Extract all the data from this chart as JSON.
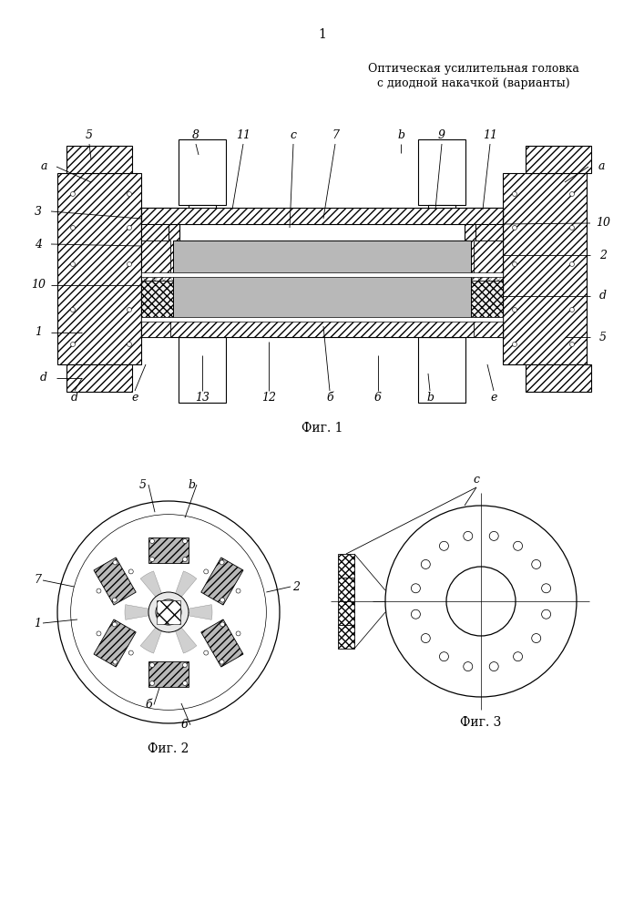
{
  "page_num": "1",
  "title1": "Оптическая усилительная головка",
  "title2": "с диодной накачкой (варианты)",
  "fig1_cap": "Фиг. 1",
  "fig2_cap": "Фиг. 2",
  "fig3_cap": "Фиг. 3",
  "bg": "#ffffff",
  "lc": "#000000",
  "gray": "#b8b8b8",
  "dgray": "#888888"
}
